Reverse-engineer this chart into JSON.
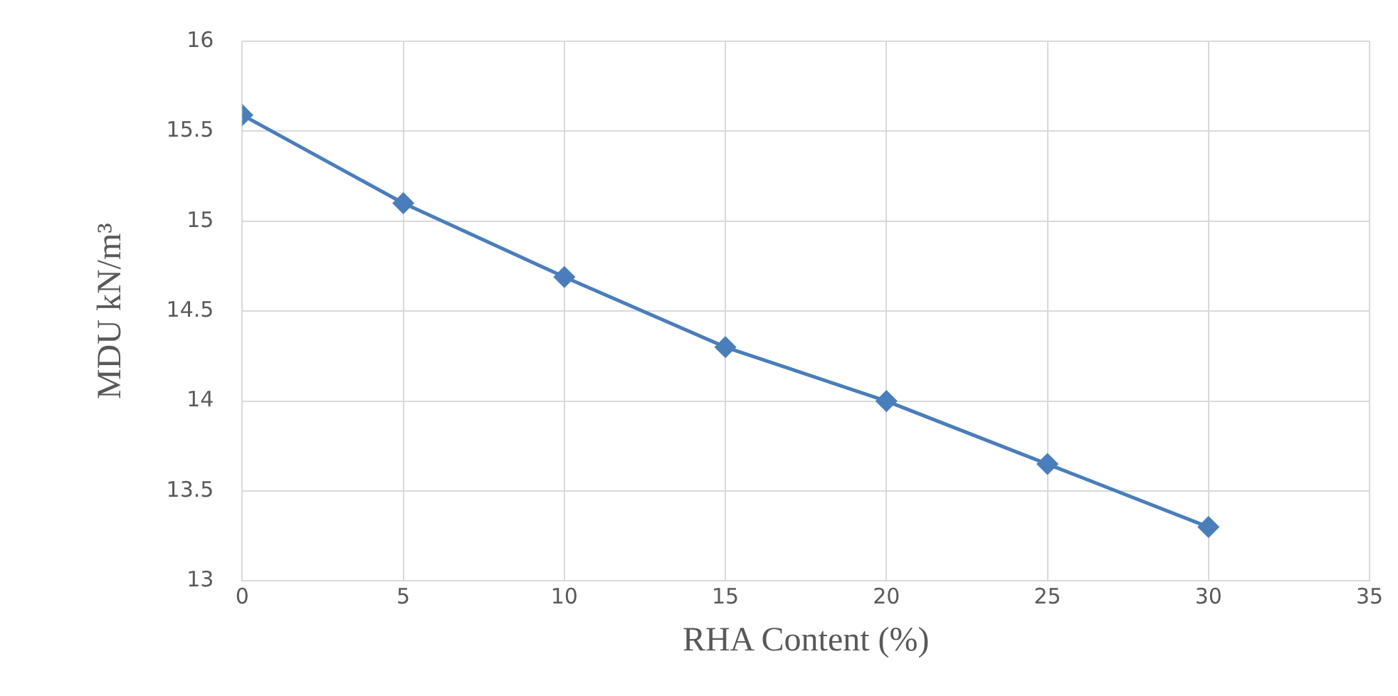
{
  "chart_data": {
    "type": "line",
    "xlabel": "RHA Content (%)",
    "ylabel": "MDU kN/m³",
    "x": [
      0,
      5,
      10,
      15,
      20,
      25,
      30
    ],
    "series": [
      {
        "color": "#4a7ebb",
        "values": [
          15.59,
          15.1,
          14.69,
          14.3,
          14.0,
          13.65,
          13.3
        ]
      }
    ],
    "xlim": [
      0,
      35
    ],
    "xticks": [
      0,
      5,
      10,
      15,
      20,
      25,
      30,
      35
    ],
    "ylim": [
      13,
      16
    ],
    "yticks": [
      13,
      13.5,
      14,
      14.5,
      15,
      15.5,
      16
    ],
    "grid": true,
    "legend": false,
    "marker": "diamond",
    "line_style": "solid"
  }
}
